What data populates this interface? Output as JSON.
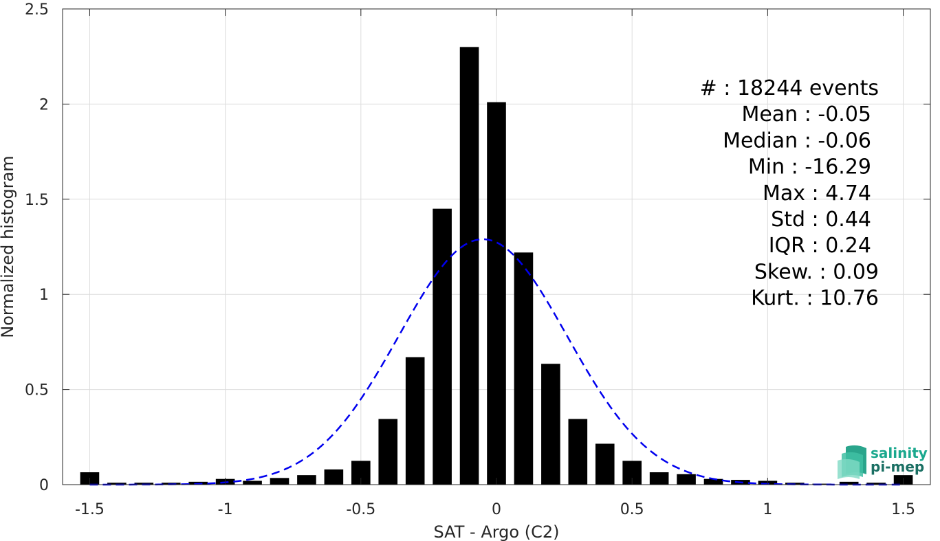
{
  "chart_data": {
    "type": "bar",
    "xlabel": "SAT - Argo (C2)",
    "ylabel": "Normalized histogram",
    "xlim": [
      -1.6,
      1.6
    ],
    "ylim": [
      0,
      2.5
    ],
    "grid": true,
    "xticks": [
      -1.5,
      -1,
      -0.5,
      0,
      0.5,
      1,
      1.5
    ],
    "xtick_labels": [
      "-1.5",
      "-1",
      "-0.5",
      "0",
      "0.5",
      "1",
      "1.5"
    ],
    "yticks": [
      0,
      0.5,
      1,
      1.5,
      2,
      2.5
    ],
    "ytick_labels": [
      "0",
      "0.5",
      "1",
      "1.5",
      "2",
      "2.5"
    ],
    "bar_width": 0.07,
    "bar_color": "#000000",
    "x": [
      -1.5,
      -1.4,
      -1.3,
      -1.2,
      -1.1,
      -1.0,
      -0.9,
      -0.8,
      -0.7,
      -0.6,
      -0.5,
      -0.4,
      -0.3,
      -0.2,
      -0.1,
      0.0,
      0.1,
      0.2,
      0.3,
      0.4,
      0.5,
      0.6,
      0.7,
      0.8,
      0.9,
      1.0,
      1.1,
      1.2,
      1.3,
      1.4,
      1.5
    ],
    "values": [
      0.065,
      0.01,
      0.01,
      0.01,
      0.015,
      0.03,
      0.02,
      0.035,
      0.05,
      0.08,
      0.125,
      0.345,
      0.67,
      1.45,
      2.3,
      2.01,
      1.22,
      0.635,
      0.345,
      0.215,
      0.125,
      0.065,
      0.055,
      0.03,
      0.025,
      0.02,
      0.01,
      0.005,
      0.015,
      0.01,
      0.05
    ],
    "fit_curve": {
      "type": "gaussian",
      "mean": -0.05,
      "std": 0.31,
      "peak": 1.29,
      "color": "#0000ee",
      "style": "dashed"
    },
    "annotation_lines": [
      "#  : 18244 events",
      "Mean : -0.05",
      "Median : -0.06",
      "Min : -16.29",
      "Max : 4.74",
      "Std : 0.44",
      "IQR : 0.24",
      "Skew. : 0.09",
      "Kurt. : 10.76"
    ]
  },
  "logo": {
    "line1": "salinity",
    "line2": "pi-mep",
    "color1": "#1aa88e",
    "color2": "#1a6f63"
  }
}
